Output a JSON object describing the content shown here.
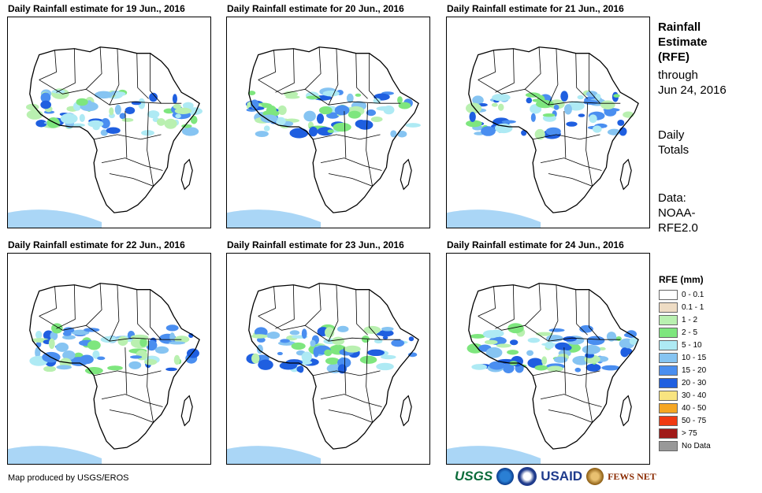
{
  "panels": [
    {
      "title": "Daily Rainfall estimate for 19 Jun., 2016"
    },
    {
      "title": "Daily Rainfall estimate for 20 Jun., 2016"
    },
    {
      "title": "Daily Rainfall estimate for 21 Jun., 2016"
    },
    {
      "title": "Daily Rainfall estimate for 22 Jun., 2016"
    },
    {
      "title": "Daily Rainfall estimate for 23 Jun., 2016"
    },
    {
      "title": "Daily Rainfall estimate for 24 Jun., 2016"
    }
  ],
  "sidebar": {
    "title_lines": [
      "Rainfall",
      "Estimate",
      "(RFE)"
    ],
    "through_lines": [
      "through",
      "Jun 24, 2016"
    ],
    "period_lines": [
      "Daily",
      "Totals"
    ],
    "data_lines": [
      "Data:",
      "NOAA-",
      "RFE2.0"
    ]
  },
  "legend": {
    "title": "RFE (mm)",
    "items": [
      {
        "label": "0 - 0.1",
        "color": "#ffffff"
      },
      {
        "label": "0.1 - 1",
        "color": "#eedcc4"
      },
      {
        "label": "1 - 2",
        "color": "#b9f0b0"
      },
      {
        "label": "2 - 5",
        "color": "#7ee67e"
      },
      {
        "label": "5 - 10",
        "color": "#aeeaf4"
      },
      {
        "label": "10 - 15",
        "color": "#86c4f2"
      },
      {
        "label": "15 - 20",
        "color": "#4a8ef0"
      },
      {
        "label": "20 - 30",
        "color": "#1f5fe0"
      },
      {
        "label": "30 - 40",
        "color": "#f8e480"
      },
      {
        "label": "40 - 50",
        "color": "#f5a623"
      },
      {
        "label": "50 - 75",
        "color": "#f03a12"
      },
      {
        "label": "> 75",
        "color": "#a01a18"
      },
      {
        "label": "No Data",
        "color": "#999999"
      }
    ]
  },
  "credit": "Map produced by USGS/EROS",
  "logos": {
    "usgs": "USGS",
    "usaid": "USAID",
    "fews": "FEWS NET"
  }
}
